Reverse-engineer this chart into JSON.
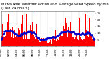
{
  "title1": "Milwaukee Weather Actual and Average Wind Speed by Minute mph",
  "title2": "(Last 24 Hours)",
  "bg_color": "#ffffff",
  "plot_bg_color": "#ffffff",
  "bar_color": "#ff0000",
  "dot_color": "#0000cc",
  "n_points": 1440,
  "y_max": 27,
  "y_min": 0,
  "y_ticks": [
    5,
    10,
    15,
    20,
    25
  ],
  "title_fontsize": 3.8,
  "tick_fontsize": 3.2,
  "grid_color": "#bbbbbb",
  "grid_linestyle": "--",
  "x_tick_interval": 120
}
